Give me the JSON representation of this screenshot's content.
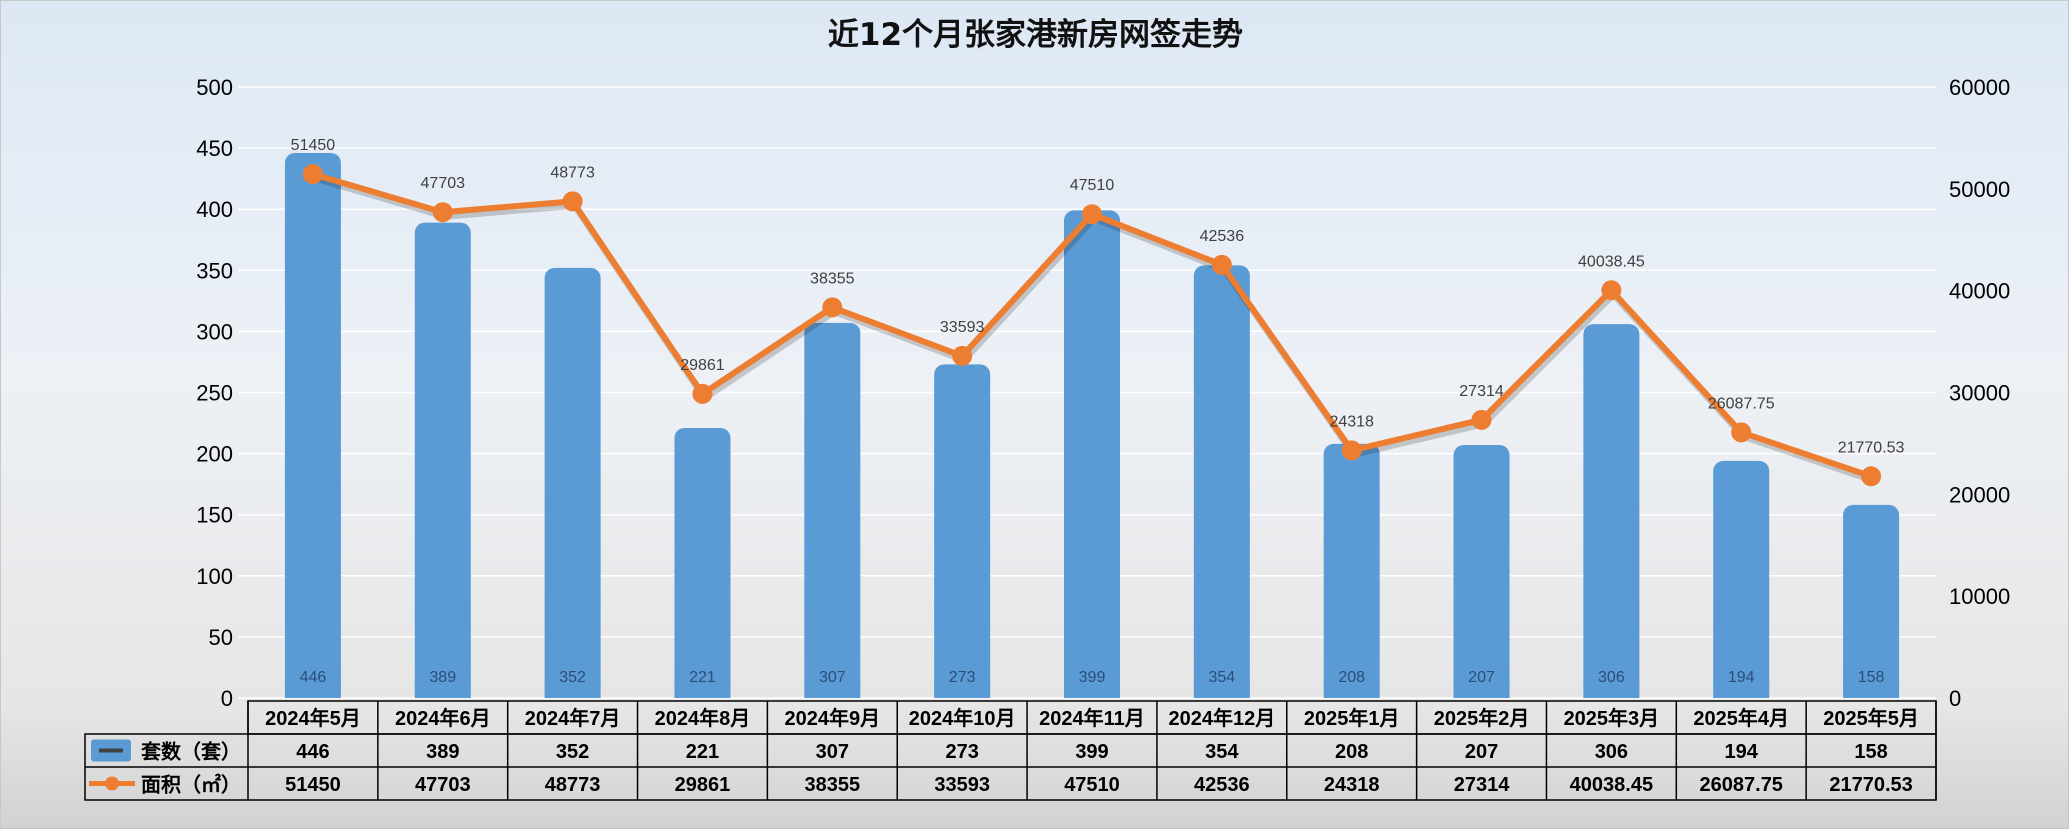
{
  "chart_data": {
    "type": "bar",
    "title": "近12个月张家港新房网签走势",
    "categories": [
      "2024年5月",
      "2024年6月",
      "2024年7月",
      "2024年8月",
      "2024年9月",
      "2024年10月",
      "2024年11月",
      "2024年12月",
      "2025年1月",
      "2025年2月",
      "2025年3月",
      "2025年4月",
      "2025年5月"
    ],
    "series": [
      {
        "name": "套数（套）",
        "type": "bar",
        "axis": "left",
        "color": "#5b9bd5",
        "values": [
          446,
          389,
          352,
          221,
          307,
          273,
          399,
          354,
          208,
          207,
          306,
          194,
          158
        ],
        "labels": [
          "446",
          "389",
          "352",
          "221",
          "307",
          "273",
          "399",
          "354",
          "208",
          "207",
          "306",
          "194",
          "158"
        ]
      },
      {
        "name": "面积（㎡）",
        "type": "line",
        "axis": "right",
        "color": "#ed7d31",
        "values": [
          51450,
          47703,
          48773,
          29861,
          38355,
          33593,
          47510,
          42536,
          24318,
          27314,
          40038.45,
          26087.75,
          21770.53
        ],
        "labels": [
          "51450",
          "47703",
          "48773",
          "29861",
          "38355",
          "33593",
          "47510",
          "42536",
          "24318",
          "27314",
          "40038.45",
          "26087.75",
          "21770.53"
        ]
      }
    ],
    "y_left": {
      "min": 0,
      "max": 500,
      "ticks": [
        "0",
        "50",
        "100",
        "150",
        "200",
        "250",
        "300",
        "350",
        "400",
        "450",
        "500"
      ]
    },
    "y_right": {
      "min": 0,
      "max": 60000,
      "ticks": [
        "0",
        "10000",
        "20000",
        "30000",
        "40000",
        "50000",
        "60000"
      ]
    },
    "grid": true,
    "legend": "data-table"
  }
}
